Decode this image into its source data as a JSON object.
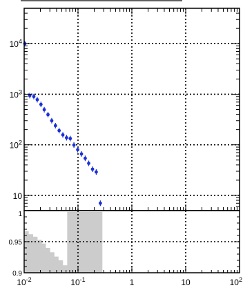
{
  "chart_data": [
    {
      "type": "scatter",
      "panel": "upper",
      "title": "",
      "xlabel": "",
      "ylabel": "",
      "xscale": "log",
      "yscale": "log",
      "xlim": [
        0.01,
        100
      ],
      "ylim": [
        5,
        50000
      ],
      "grid": true,
      "grid_style": "dotted",
      "y_tick_labels": [
        "10",
        "10^2",
        "10^3",
        "10^4"
      ],
      "y_tick_values": [
        10,
        100,
        1000,
        10000
      ],
      "marker_color": "#1a2fd6",
      "series": [
        {
          "points": [
            {
              "x": 0.0103,
              "y": 10000
            },
            {
              "x": 0.0127,
              "y": 940
            },
            {
              "x": 0.0151,
              "y": 900
            },
            {
              "x": 0.0175,
              "y": 780
            },
            {
              "x": 0.0205,
              "y": 630
            },
            {
              "x": 0.0236,
              "y": 495
            },
            {
              "x": 0.0277,
              "y": 395
            },
            {
              "x": 0.0325,
              "y": 300
            },
            {
              "x": 0.0381,
              "y": 239
            },
            {
              "x": 0.0446,
              "y": 191
            },
            {
              "x": 0.0523,
              "y": 157
            },
            {
              "x": 0.0613,
              "y": 138
            },
            {
              "x": 0.0718,
              "y": 133
            },
            {
              "x": 0.084,
              "y": 99
            },
            {
              "x": 0.0987,
              "y": 80
            },
            {
              "x": 0.116,
              "y": 66
            },
            {
              "x": 0.136,
              "y": 54
            },
            {
              "x": 0.158,
              "y": 43
            },
            {
              "x": 0.186,
              "y": 33
            },
            {
              "x": 0.218,
              "y": 29
            },
            {
              "x": 0.26,
              "y": 7
            }
          ]
        }
      ]
    },
    {
      "type": "bar",
      "panel": "lower",
      "xscale": "log",
      "xlim": [
        0.01,
        100
      ],
      "ylim": [
        0.9,
        1.0
      ],
      "grid": true,
      "grid_style": "dotted",
      "x_tick_labels": [
        "10^-2",
        "10^-1",
        "1",
        "10",
        "10^2"
      ],
      "x_tick_values": [
        0.01,
        0.1,
        1,
        10,
        100
      ],
      "y_tick_labels": [
        "0.9",
        "0.95"
      ],
      "y_tick_values": [
        0.9,
        0.95
      ],
      "top_label": "1",
      "fill_color": "#cccccc",
      "bins": [
        {
          "x0": 0.0103,
          "x1": 0.012,
          "y": 0.967
        },
        {
          "x0": 0.012,
          "x1": 0.0145,
          "y": 0.962
        },
        {
          "x0": 0.0145,
          "x1": 0.0175,
          "y": 0.958
        },
        {
          "x0": 0.0175,
          "x1": 0.021,
          "y": 0.953
        },
        {
          "x0": 0.021,
          "x1": 0.025,
          "y": 0.947
        },
        {
          "x0": 0.025,
          "x1": 0.03,
          "y": 0.94
        },
        {
          "x0": 0.03,
          "x1": 0.036,
          "y": 0.933
        },
        {
          "x0": 0.036,
          "x1": 0.043,
          "y": 0.926
        },
        {
          "x0": 0.043,
          "x1": 0.052,
          "y": 0.92
        },
        {
          "x0": 0.052,
          "x1": 0.063,
          "y": 0.912
        },
        {
          "x0": 0.063,
          "x1": 0.075,
          "y": 0.998
        },
        {
          "x0": 0.075,
          "x1": 0.09,
          "y": 0.998
        },
        {
          "x0": 0.09,
          "x1": 0.108,
          "y": 0.998
        },
        {
          "x0": 0.108,
          "x1": 0.13,
          "y": 0.998
        },
        {
          "x0": 0.13,
          "x1": 0.155,
          "y": 0.998
        },
        {
          "x0": 0.155,
          "x1": 0.186,
          "y": 0.998
        },
        {
          "x0": 0.186,
          "x1": 0.223,
          "y": 0.998
        },
        {
          "x0": 0.223,
          "x1": 0.267,
          "y": 0.998
        },
        {
          "x0": 0.267,
          "x1": 0.28,
          "y": 0.998
        }
      ]
    }
  ]
}
